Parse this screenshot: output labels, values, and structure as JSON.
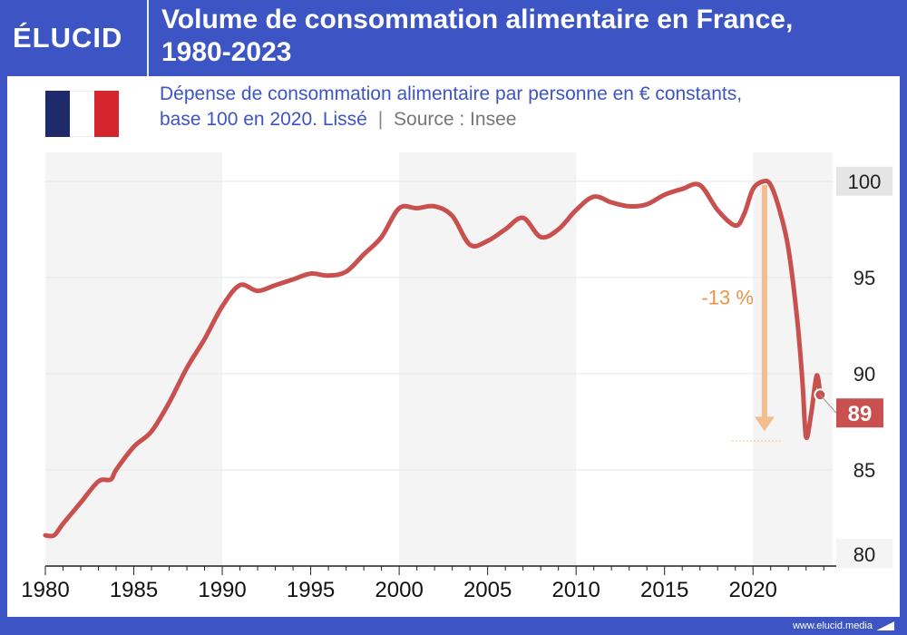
{
  "header": {
    "logo": "ÉLUCID",
    "title_line1": "Volume de consommation alimentaire en France,",
    "title_line2": "1980-2023"
  },
  "subtitle": {
    "line1": "Dépense de consommation alimentaire par personne en € constants,",
    "line2": "base 100 en 2020. Lissé",
    "separator": "|",
    "source": "Source : Insee"
  },
  "colors": {
    "brand": "#3d55c4",
    "line": "#c8504f",
    "arrow": "#f2bd8f",
    "annotation": "#e8944a",
    "band": "#f4f4f4",
    "flag_blue": "#1f2a6b",
    "flag_red": "#d4262c"
  },
  "chart_data": {
    "type": "line",
    "title": "Volume de consommation alimentaire en France, 1980-2023",
    "xlabel": "",
    "ylabel": "",
    "xlim": [
      1980,
      2024.5
    ],
    "ylim": [
      80,
      101.5
    ],
    "grid": true,
    "x_ticks": [
      1980,
      1985,
      1990,
      1995,
      2000,
      2005,
      2010,
      2015,
      2020
    ],
    "y_ticks": [
      80,
      85,
      90,
      95,
      100
    ],
    "series": [
      {
        "name": "Dépense de consommation alimentaire par personne",
        "x": [
          1980,
          1980.5,
          1981,
          1982,
          1983,
          1983.7,
          1984,
          1985,
          1986,
          1987,
          1988,
          1989,
          1990,
          1991,
          1992,
          1993,
          1994,
          1995,
          1996,
          1997,
          1998,
          1999,
          2000,
          2001,
          2002,
          2003,
          2004,
          2005,
          2006,
          2007,
          2008,
          2009,
          2010,
          2011,
          2012,
          2013,
          2014,
          2015,
          2016,
          2017,
          2018,
          2019,
          2019.5,
          2020,
          2020.6,
          2021,
          2021.5,
          2022,
          2022.5,
          2022.8,
          2023,
          2023.3,
          2023.6,
          2023.8
        ],
        "y": [
          81.6,
          81.6,
          82.2,
          83.3,
          84.4,
          84.5,
          85.0,
          86.2,
          87.0,
          88.5,
          90.3,
          91.8,
          93.5,
          94.6,
          94.3,
          94.6,
          94.9,
          95.2,
          95.1,
          95.3,
          96.2,
          97.1,
          98.6,
          98.6,
          98.7,
          98.2,
          96.7,
          96.9,
          97.5,
          98.1,
          97.1,
          97.5,
          98.5,
          99.2,
          98.9,
          98.7,
          98.8,
          99.3,
          99.6,
          99.8,
          98.5,
          97.7,
          98.3,
          99.6,
          100.0,
          99.8,
          98.5,
          96.5,
          92.8,
          89.5,
          86.7,
          88.0,
          89.9,
          88.9
        ]
      }
    ],
    "end_label": "89",
    "top_label": "100",
    "annotation": "-13 %",
    "highlight_bands": [
      [
        1980,
        1990
      ],
      [
        2000,
        2010
      ],
      [
        2020,
        2024.5
      ]
    ]
  },
  "footer": {
    "url": "www.elucid.media"
  }
}
